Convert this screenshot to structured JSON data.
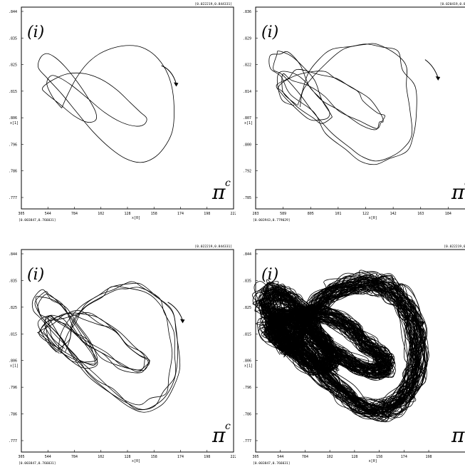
{
  "chart_data": [
    {
      "type": "line",
      "panel_tag": "(i)",
      "legend_text": "π",
      "legend_sup": "c",
      "corner_range": "[0.022219,0.844331]",
      "bottom_range": "[0.003847,0.766031]",
      "xlabel": "x[0]",
      "ylabel": "x[1]",
      "x_ticks": [
        "305",
        "544",
        "784",
        "102",
        "128",
        "158",
        "174",
        "198",
        "222"
      ],
      "y_ticks": [
        ".844",
        ".835",
        ".825",
        ".815",
        ".806",
        ".796",
        ".786",
        ".777"
      ],
      "direction_arrow": "clockwise",
      "density": "single"
    },
    {
      "type": "line",
      "panel_tag": "(i)",
      "legend_text": "π",
      "legend_sup": "c",
      "corner_range": "[0.020419,0.8361",
      "bottom_range": "[0.003943,0.779029]",
      "xlabel": "x[0]",
      "ylabel": "x[1]",
      "x_ticks": [
        "283",
        "589",
        "805",
        "101",
        "122",
        "142",
        "163",
        "184",
        "20"
      ],
      "y_ticks": [
        ".836",
        ".829",
        ".822",
        ".814",
        ".807",
        ".800",
        ".792",
        ".785"
      ],
      "direction_arrow": "clockwise",
      "density": "double"
    },
    {
      "type": "line",
      "panel_tag": "(i)",
      "legend_text": "π",
      "legend_sup": "c",
      "corner_range": "[0.022219,0.844331]",
      "bottom_range": "[0.003847,0.766031]",
      "xlabel": "x[0]",
      "ylabel": "x[1]",
      "x_ticks": [
        "305",
        "544",
        "784",
        "102",
        "128",
        "158",
        "174",
        "198",
        "222"
      ],
      "y_ticks": [
        ".844",
        ".835",
        ".825",
        ".815",
        ".806",
        ".796",
        ".786",
        ".777"
      ],
      "direction_arrow": "clockwise",
      "density": "multi"
    },
    {
      "type": "line",
      "panel_tag": "(i)",
      "legend_text": "π",
      "legend_sup": "",
      "corner_range": "[0.022219,0.84",
      "bottom_range": "[0.003847,0.766031]",
      "xlabel": "x[0]",
      "ylabel": "x[1]",
      "x_ticks": [
        "305",
        "544",
        "784",
        "102",
        "128",
        "158",
        "174",
        "198"
      ],
      "y_ticks": [
        ".844",
        ".835",
        ".825",
        ".815",
        ".806",
        ".796",
        ".786",
        ".777"
      ],
      "direction_arrow": "clockwise",
      "density": "chaotic"
    }
  ]
}
